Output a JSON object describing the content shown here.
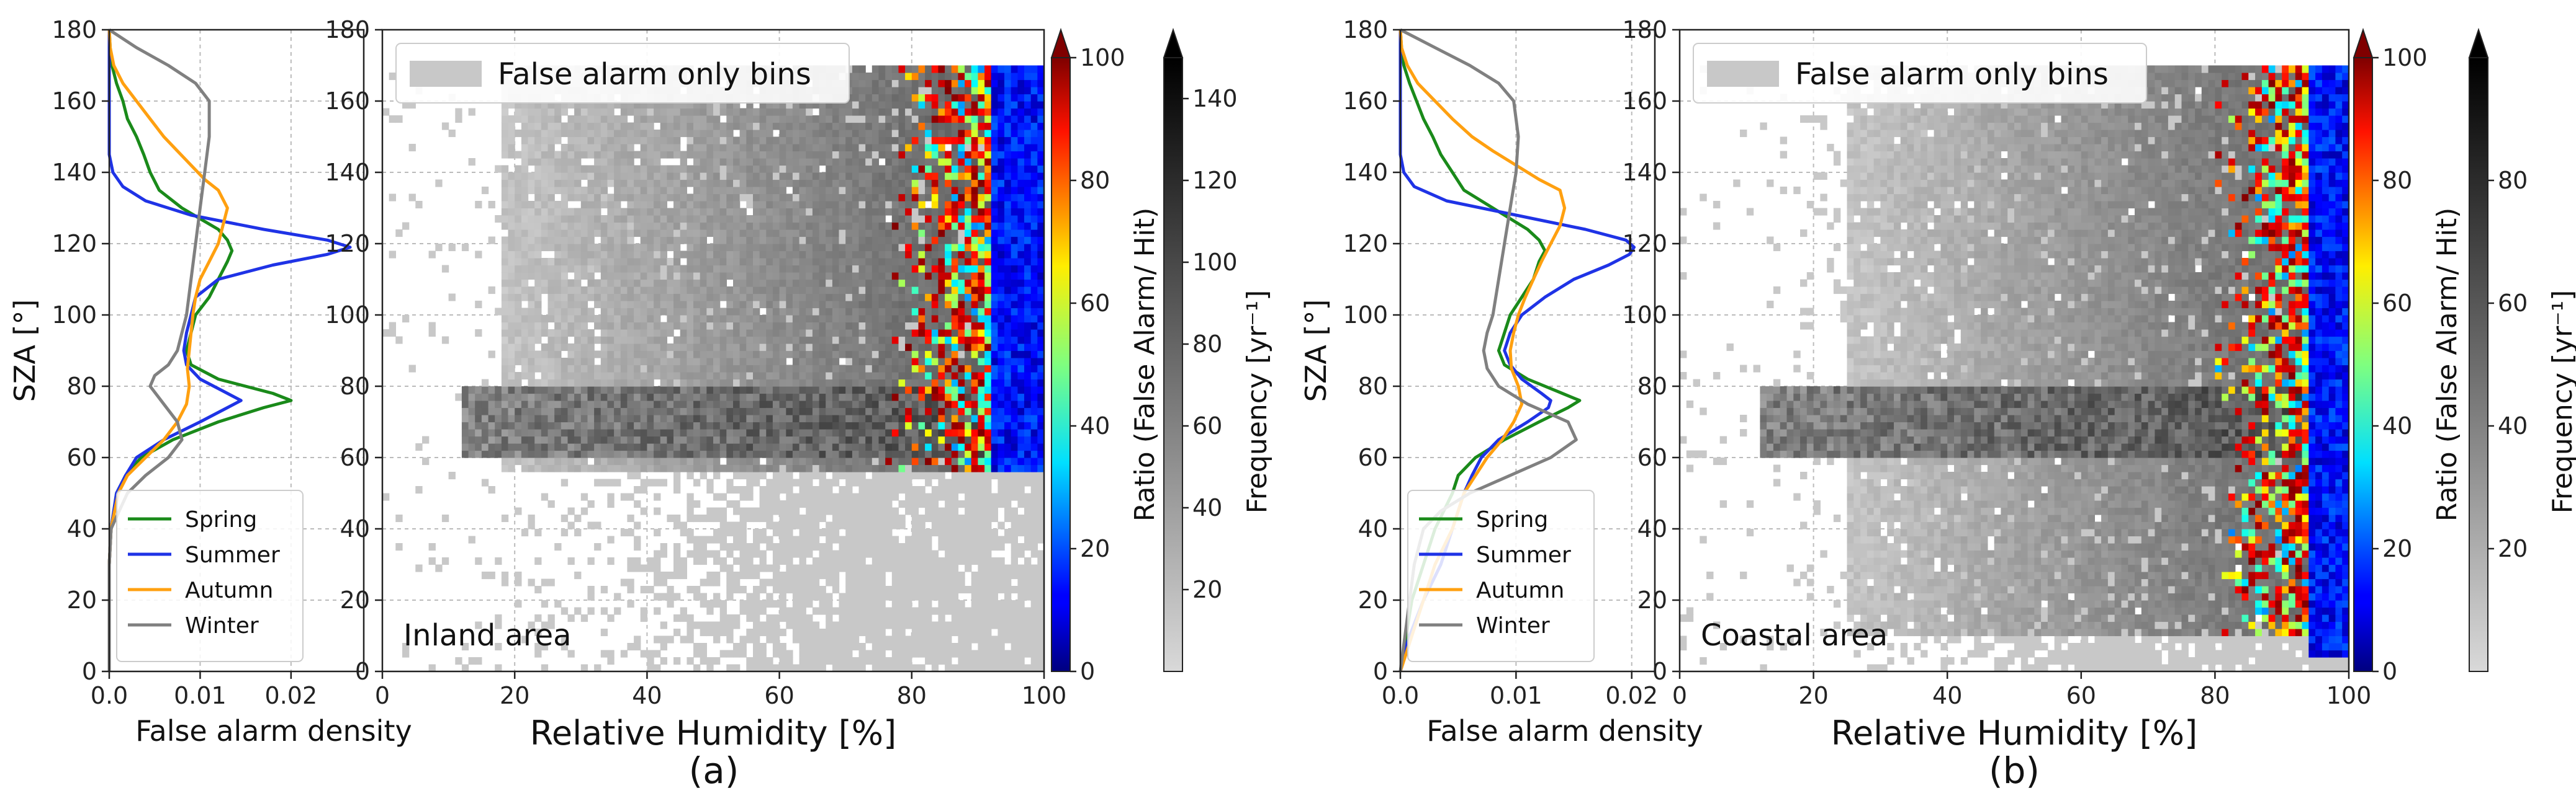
{
  "chart_data": [
    {
      "panel": "(a)",
      "area_label": "Inland area",
      "density": {
        "type": "line",
        "xlabel": "False alarm density",
        "ylabel": "SZA [°]",
        "xlim": [
          0,
          0.028
        ],
        "ylim": [
          0,
          180
        ],
        "xticks": [
          "0.0",
          "0.01",
          "0.02"
        ],
        "xtick_values": [
          0,
          0.01,
          0.02
        ],
        "yticks": [
          0,
          20,
          40,
          60,
          80,
          100,
          120,
          140,
          160,
          180
        ],
        "grid": true,
        "legend_position": "lower-left",
        "series": [
          {
            "name": "Spring",
            "color": "#1a8a1a",
            "y": [
              0,
              10,
              20,
              30,
              40,
              50,
              55,
              60,
              65,
              70,
              74,
              76,
              78,
              82,
              86,
              90,
              95,
              100,
              105,
              110,
              115,
              118,
              121,
              124,
              127,
              130,
              135,
              140,
              145,
              150,
              155,
              160,
              165,
              170,
              175,
              180
            ],
            "x": [
              0,
              0,
              0,
              0,
              0.0002,
              0.0008,
              0.0018,
              0.0035,
              0.007,
              0.012,
              0.017,
              0.02,
              0.018,
              0.012,
              0.009,
              0.0085,
              0.009,
              0.0095,
              0.011,
              0.012,
              0.013,
              0.0135,
              0.013,
              0.012,
              0.01,
              0.008,
              0.0055,
              0.0045,
              0.0038,
              0.003,
              0.002,
              0.0015,
              0.0008,
              0.0003,
              0.0001,
              0
            ]
          },
          {
            "name": "Summer",
            "color": "#1f33e6",
            "y": [
              0,
              10,
              20,
              30,
              40,
              50,
              55,
              60,
              65,
              70,
              74,
              76,
              78,
              82,
              86,
              90,
              95,
              100,
              105,
              110,
              114,
              117,
              119,
              121,
              124,
              128,
              132,
              136,
              140,
              145,
              150,
              160,
              170,
              180
            ],
            "x": [
              0,
              0,
              0,
              0,
              0.0002,
              0.0008,
              0.0018,
              0.003,
              0.006,
              0.01,
              0.013,
              0.0145,
              0.013,
              0.01,
              0.0085,
              0.0082,
              0.0085,
              0.009,
              0.0095,
              0.012,
              0.018,
              0.024,
              0.0265,
              0.024,
              0.017,
              0.009,
              0.004,
              0.0015,
              0.0004,
              0,
              0,
              0,
              0,
              0
            ]
          },
          {
            "name": "Autumn",
            "color": "#ffa010",
            "y": [
              0,
              10,
              20,
              30,
              40,
              50,
              55,
              60,
              65,
              70,
              75,
              80,
              85,
              90,
              95,
              100,
              105,
              110,
              115,
              120,
              125,
              130,
              135,
              138,
              142,
              146,
              150,
              155,
              160,
              165,
              170,
              175,
              180
            ],
            "x": [
              0,
              0,
              0,
              0,
              0.0002,
              0.001,
              0.002,
              0.004,
              0.006,
              0.0075,
              0.0085,
              0.0088,
              0.0086,
              0.0088,
              0.009,
              0.0092,
              0.0095,
              0.01,
              0.011,
              0.012,
              0.0125,
              0.013,
              0.012,
              0.0105,
              0.009,
              0.0075,
              0.006,
              0.0045,
              0.003,
              0.0015,
              0.0005,
              0.0001,
              0
            ]
          },
          {
            "name": "Winter",
            "color": "#808080",
            "y": [
              0,
              10,
              20,
              30,
              40,
              50,
              55,
              60,
              65,
              70,
              75,
              80,
              83,
              86,
              90,
              95,
              100,
              110,
              120,
              130,
              140,
              150,
              160,
              165,
              170,
              175,
              180
            ],
            "x": [
              0,
              0,
              0,
              0,
              0.0002,
              0.002,
              0.004,
              0.0065,
              0.008,
              0.0075,
              0.006,
              0.0045,
              0.005,
              0.0065,
              0.0075,
              0.008,
              0.0085,
              0.009,
              0.0095,
              0.01,
              0.0105,
              0.011,
              0.011,
              0.0095,
              0.0065,
              0.003,
              0
            ]
          }
        ]
      },
      "heatmap": {
        "type": "heatmap",
        "xlabel": "Relative Humidity [%]",
        "xlim": [
          0,
          100
        ],
        "ylim": [
          0,
          180
        ],
        "xticks": [
          0,
          20,
          40,
          60,
          80,
          100
        ],
        "yticks": [
          0,
          20,
          40,
          60,
          80,
          100,
          120,
          140,
          160,
          180
        ],
        "grid": true,
        "legend_position": "top-left",
        "legend_entry": "False alarm only bins",
        "legend_color": "#c8c8c8",
        "ratio_colorbar": {
          "label": "Ratio (False Alarm/ Hit)",
          "range": [
            0,
            100
          ],
          "ticks": [
            0,
            20,
            40,
            60,
            80,
            100
          ],
          "extend": "max"
        },
        "frequency_colorbar": {
          "label": "Frequency [yr⁻¹]",
          "range": [
            0,
            150
          ],
          "ticks": [
            20,
            40,
            60,
            80,
            100,
            120,
            140
          ],
          "extend": "max"
        },
        "regions": {
          "false_alarm_only": {
            "x": [
              0,
              100
            ],
            "y": [
              0,
              170
            ]
          },
          "dense_gray": {
            "x": [
              18,
              96
            ],
            "y": [
              57,
              170
            ]
          },
          "gray_band": {
            "x": [
              12,
              96
            ],
            "y": [
              60,
              80
            ]
          },
          "colored": {
            "x": [
              76,
              100
            ],
            "y": [
              57,
              170
            ]
          },
          "blue_edge": {
            "x": [
              92,
              100
            ],
            "y": [
              57,
              170
            ]
          }
        }
      }
    },
    {
      "panel": "(b)",
      "area_label": "Coastal area",
      "density": {
        "type": "line",
        "xlabel": "False alarm density",
        "ylabel": "SZA [°]",
        "xlim": [
          0,
          0.022
        ],
        "ylim": [
          0,
          180
        ],
        "xticks": [
          "0.0",
          "0.01",
          "0.02"
        ],
        "xtick_values": [
          0,
          0.01,
          0.02
        ],
        "yticks": [
          0,
          20,
          40,
          60,
          80,
          100,
          120,
          140,
          160,
          180
        ],
        "grid": true,
        "legend_position": "lower-left",
        "series": [
          {
            "name": "Spring",
            "color": "#1a8a1a",
            "y": [
              0,
              10,
              20,
              30,
              40,
              50,
              55,
              60,
              65,
              70,
              74,
              76,
              78,
              82,
              86,
              90,
              95,
              100,
              105,
              110,
              115,
              118,
              121,
              124,
              127,
              130,
              135,
              140,
              145,
              150,
              155,
              160,
              165,
              170,
              175,
              180
            ],
            "x": [
              0,
              0.0005,
              0.001,
              0.002,
              0.003,
              0.0045,
              0.005,
              0.0065,
              0.009,
              0.012,
              0.0145,
              0.0155,
              0.014,
              0.011,
              0.009,
              0.0085,
              0.009,
              0.0095,
              0.0105,
              0.0115,
              0.012,
              0.0125,
              0.012,
              0.011,
              0.0095,
              0.008,
              0.0055,
              0.0045,
              0.0035,
              0.0028,
              0.002,
              0.0014,
              0.0008,
              0.0003,
              0.0001,
              0
            ]
          },
          {
            "name": "Summer",
            "color": "#1f33e6",
            "y": [
              0,
              5,
              10,
              20,
              30,
              40,
              50,
              55,
              60,
              65,
              70,
              74,
              76,
              78,
              82,
              86,
              90,
              95,
              100,
              105,
              110,
              114,
              117,
              119,
              121,
              124,
              128,
              132,
              136,
              140,
              145,
              150,
              160,
              170,
              180
            ],
            "x": [
              0,
              0.0003,
              0.0008,
              0.002,
              0.0035,
              0.0045,
              0.0055,
              0.0062,
              0.007,
              0.0085,
              0.011,
              0.0128,
              0.013,
              0.0122,
              0.0105,
              0.0095,
              0.009,
              0.0095,
              0.0105,
              0.0125,
              0.015,
              0.018,
              0.0198,
              0.0202,
              0.0195,
              0.016,
              0.01,
              0.004,
              0.0012,
              0.0003,
              0,
              0,
              0,
              0,
              0
            ]
          },
          {
            "name": "Autumn",
            "color": "#ffa010",
            "y": [
              0,
              5,
              10,
              20,
              30,
              40,
              50,
              55,
              60,
              65,
              70,
              75,
              80,
              85,
              90,
              95,
              100,
              105,
              110,
              115,
              120,
              125,
              130,
              135,
              138,
              142,
              146,
              150,
              155,
              160,
              165,
              170,
              175,
              180
            ],
            "x": [
              0,
              0.0005,
              0.001,
              0.002,
              0.003,
              0.0045,
              0.0055,
              0.0065,
              0.0075,
              0.0088,
              0.0098,
              0.0105,
              0.0102,
              0.0096,
              0.0095,
              0.0098,
              0.0102,
              0.0108,
              0.0115,
              0.0122,
              0.013,
              0.0138,
              0.0142,
              0.0138,
              0.012,
              0.01,
              0.008,
              0.0062,
              0.0045,
              0.003,
              0.0015,
              0.0006,
              0.0001,
              0
            ]
          },
          {
            "name": "Winter",
            "color": "#808080",
            "y": [
              0,
              5,
              10,
              20,
              30,
              40,
              45,
              50,
              55,
              60,
              65,
              70,
              75,
              80,
              85,
              90,
              95,
              100,
              110,
              120,
              130,
              140,
              150,
              160,
              165,
              170,
              175,
              180
            ],
            "x": [
              0,
              0.0002,
              0.0004,
              0.0008,
              0.0012,
              0.002,
              0.0035,
              0.006,
              0.0095,
              0.013,
              0.0152,
              0.0145,
              0.011,
              0.0085,
              0.0075,
              0.0072,
              0.0075,
              0.008,
              0.0085,
              0.009,
              0.0095,
              0.01,
              0.0102,
              0.0098,
              0.0085,
              0.006,
              0.003,
              0
            ]
          }
        ]
      },
      "heatmap": {
        "type": "heatmap",
        "xlabel": "Relative Humidity [%]",
        "xlim": [
          0,
          100
        ],
        "ylim": [
          0,
          180
        ],
        "xticks": [
          0,
          20,
          40,
          60,
          80,
          100
        ],
        "yticks": [
          0,
          20,
          40,
          60,
          80,
          100,
          120,
          140,
          160,
          180
        ],
        "grid": true,
        "legend_position": "top-left",
        "legend_entry": "False alarm only bins",
        "legend_color": "#c8c8c8",
        "ratio_colorbar": {
          "label": "Ratio (False Alarm/ Hit)",
          "range": [
            0,
            100
          ],
          "ticks": [
            0,
            20,
            40,
            60,
            80,
            100
          ],
          "extend": "max"
        },
        "frequency_colorbar": {
          "label": "Frequency [yr⁻¹]",
          "range": [
            0,
            100
          ],
          "ticks": [
            20,
            40,
            60,
            80
          ],
          "extend": "max"
        },
        "regions": {
          "false_alarm_only": {
            "x": [
              0,
              100
            ],
            "y": [
              0,
              170
            ]
          },
          "dense_gray": {
            "x": [
              25,
              96
            ],
            "y": [
              10,
              170
            ]
          },
          "gray_band": {
            "x": [
              12,
              96
            ],
            "y": [
              60,
              80
            ]
          },
          "colored": {
            "x": [
              80,
              100
            ],
            "y": [
              10,
              170
            ]
          },
          "blue_edge": {
            "x": [
              94,
              100
            ],
            "y": [
              5,
              170
            ]
          }
        }
      }
    }
  ]
}
